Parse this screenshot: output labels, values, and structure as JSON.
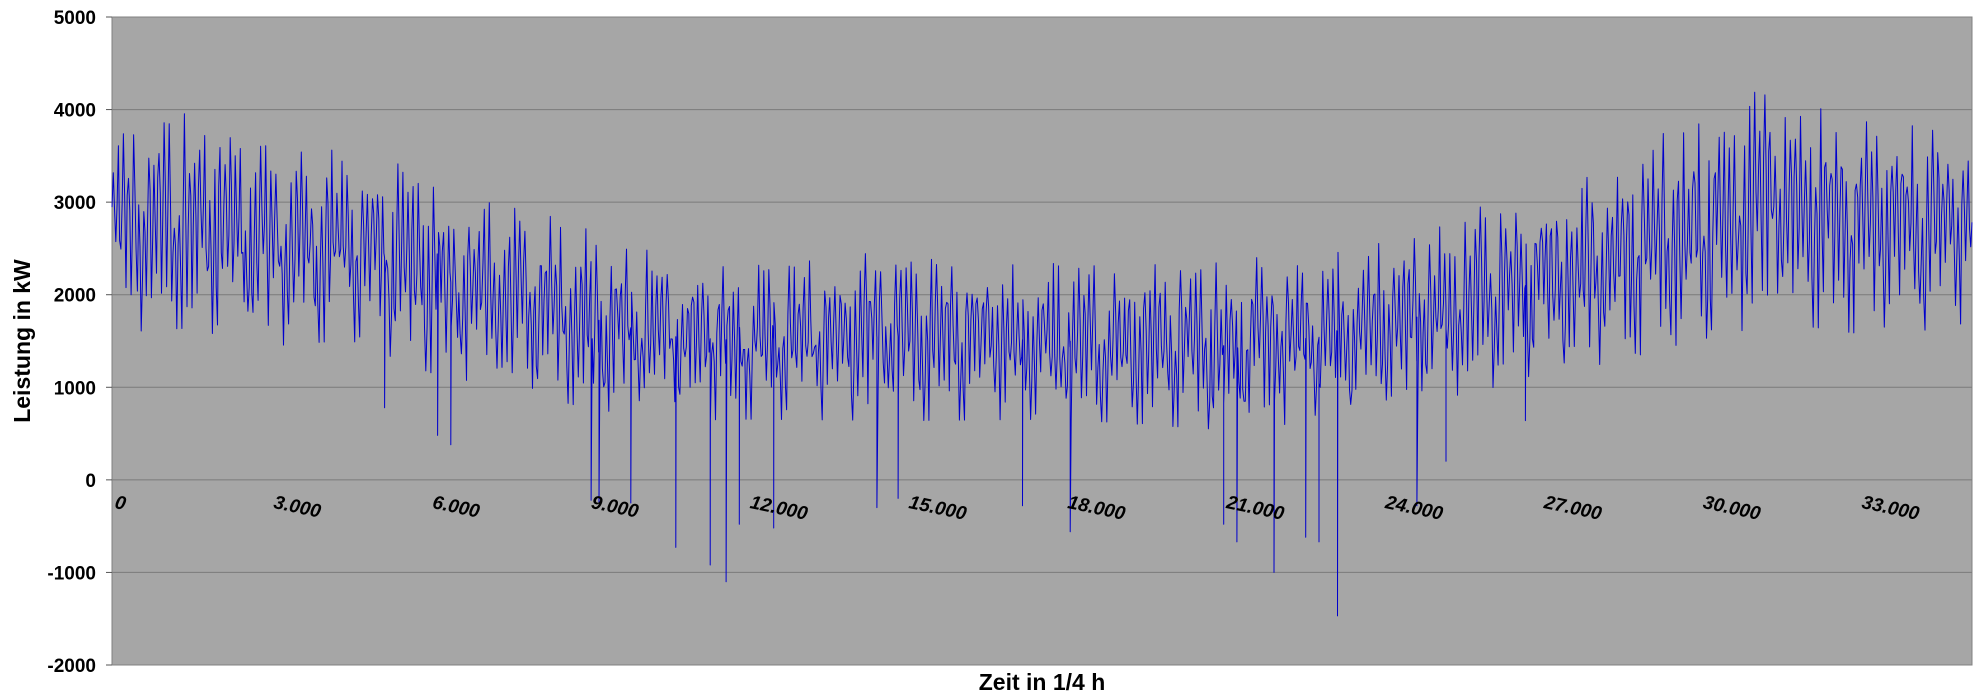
{
  "chart_data": {
    "type": "line",
    "xlabel": "Zeit in 1/4 h",
    "ylabel": "Leistung in kW",
    "xlim": [
      0,
      35136
    ],
    "ylim": [
      -2000,
      5000
    ],
    "y_ticks": [
      "5000",
      "4000",
      "3000",
      "2000",
      "1000",
      "0",
      "-1000",
      "-2000"
    ],
    "y_tick_values": [
      5000,
      4000,
      3000,
      2000,
      1000,
      0,
      -1000,
      -2000
    ],
    "x_ticks": [
      "0",
      "3.000",
      "6.000",
      "9.000",
      "12.000",
      "15.000",
      "18.000",
      "21.000",
      "24.000",
      "27.000",
      "30.000",
      "33.000"
    ],
    "x_tick_values": [
      0,
      3000,
      6000,
      9000,
      12000,
      15000,
      18000,
      21000,
      24000,
      27000,
      30000,
      33000
    ],
    "grid": true,
    "legend": "none",
    "series": [
      {
        "color": "#0000cc",
        "profile_x": [
          0,
          1500,
          3000,
          4500,
          6000,
          7500,
          9000,
          10500,
          12000,
          15000,
          18000,
          21000,
          23000,
          24000,
          25500,
          27000,
          28500,
          30000,
          31500,
          33000,
          35136
        ],
        "profile_base": [
          2700,
          2800,
          2550,
          2550,
          2200,
          1950,
          1750,
          1550,
          1500,
          1550,
          1500,
          1450,
          1550,
          1650,
          1900,
          2150,
          2400,
          2750,
          3000,
          2750,
          2750
        ],
        "profile_amplitude": [
          850,
          900,
          850,
          800,
          800,
          750,
          750,
          700,
          650,
          700,
          650,
          700,
          700,
          700,
          750,
          800,
          850,
          950,
          1000,
          900,
          850
        ],
        "peak_max_kw": 4200,
        "min_kw": -1470,
        "negative_spikes": [
          {
            "x": 5150,
            "y": 780
          },
          {
            "x": 6150,
            "y": 480
          },
          {
            "x": 6400,
            "y": 380
          },
          {
            "x": 9050,
            "y": -220
          },
          {
            "x": 9200,
            "y": -240
          },
          {
            "x": 9800,
            "y": -250
          },
          {
            "x": 10650,
            "y": -730
          },
          {
            "x": 11300,
            "y": -920
          },
          {
            "x": 11600,
            "y": -1100
          },
          {
            "x": 11850,
            "y": -480
          },
          {
            "x": 12500,
            "y": -520
          },
          {
            "x": 14450,
            "y": -300
          },
          {
            "x": 14850,
            "y": -200
          },
          {
            "x": 17200,
            "y": -280
          },
          {
            "x": 18100,
            "y": -560
          },
          {
            "x": 21000,
            "y": -480
          },
          {
            "x": 21250,
            "y": -670
          },
          {
            "x": 21950,
            "y": -1000
          },
          {
            "x": 22550,
            "y": -620
          },
          {
            "x": 22800,
            "y": -670
          },
          {
            "x": 23150,
            "y": -1470
          },
          {
            "x": 24650,
            "y": -280
          },
          {
            "x": 25200,
            "y": 200
          },
          {
            "x": 26700,
            "y": 640
          }
        ]
      }
    ]
  }
}
